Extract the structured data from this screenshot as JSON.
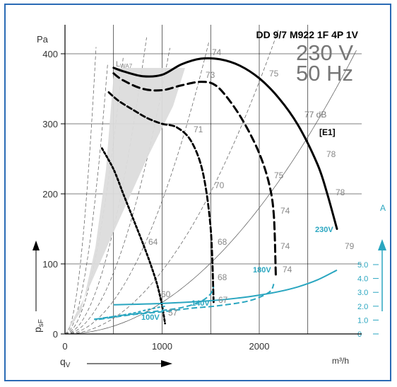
{
  "chart_data": {
    "type": "line",
    "title": "DD 9/7 M922 1F 4P 1V",
    "voltage": "230 V",
    "frequency": "50 Hz",
    "ylabel_unit": "Pa",
    "ylabel": "p",
    "ylabel_sub": "sF",
    "xlabel": "q",
    "xlabel_sub": "V",
    "xunit": "m³/h",
    "y2unit": "A",
    "lwa_label": "L",
    "lwa_sub": "WA7",
    "db_label": "77 dB",
    "e1_label": "[E1]",
    "xlim": [
      0,
      3000
    ],
    "ylim": [
      0,
      450
    ],
    "y2lim": [
      0,
      5.5
    ],
    "x_ticks": [
      0,
      1000,
      2000
    ],
    "y_ticks": [
      0,
      100,
      200,
      300,
      400
    ],
    "y2_ticks": [
      "0",
      "1.0",
      "2.0",
      "3.0",
      "4.0",
      "5.0"
    ],
    "y2_tick_values": [
      0,
      1,
      2,
      3,
      4,
      5
    ],
    "grid": true,
    "pressure_series": [
      {
        "name": "230V",
        "style": "solid",
        "x": [
          500,
          600,
          800,
          1000,
          1200,
          1400,
          1600,
          1800,
          2000,
          2200,
          2400,
          2600,
          2700,
          2800
        ],
        "y": [
          380,
          375,
          368,
          370,
          385,
          393,
          392,
          383,
          365,
          337,
          298,
          242,
          200,
          150
        ]
      },
      {
        "name": "180V",
        "style": "dash",
        "x": [
          500,
          600,
          800,
          1000,
          1200,
          1400,
          1550,
          1700,
          1850,
          2000,
          2100,
          2150,
          2170
        ],
        "y": [
          372,
          362,
          350,
          348,
          355,
          360,
          355,
          332,
          300,
          258,
          215,
          170,
          85
        ]
      },
      {
        "name": "140V",
        "style": "dash-mid",
        "x": [
          450,
          550,
          700,
          850,
          1000,
          1150,
          1300,
          1420,
          1500,
          1530
        ],
        "y": [
          345,
          333,
          320,
          308,
          300,
          295,
          275,
          230,
          150,
          45
        ]
      },
      {
        "name": "100V",
        "style": "dot",
        "x": [
          380,
          500,
          600,
          700,
          800,
          880,
          950,
          1000,
          1030
        ],
        "y": [
          265,
          235,
          200,
          165,
          130,
          100,
          70,
          40,
          15
        ]
      }
    ],
    "current_series": [
      {
        "name": "230V",
        "x": [
          500,
          1000,
          1500,
          1800,
          2000,
          2200,
          2400,
          2600,
          2800
        ],
        "y": [
          2.1,
          2.2,
          2.4,
          2.6,
          2.8,
          3.05,
          3.4,
          3.9,
          4.6
        ]
      },
      {
        "name": "180V",
        "x": [
          350,
          700,
          1000,
          1300,
          1600,
          1900,
          2100,
          2150
        ],
        "y": [
          1.05,
          1.4,
          1.6,
          1.85,
          2.05,
          2.4,
          3.0,
          3.6
        ]
      },
      {
        "name": "140V",
        "x": [
          300,
          600,
          900,
          1200,
          1400,
          1500,
          1530
        ],
        "y": [
          1.05,
          1.35,
          1.6,
          1.9,
          2.35,
          2.9,
          3.4
        ]
      },
      {
        "name": "100V",
        "x": [
          300,
          500,
          700,
          850,
          950,
          1030
        ],
        "y": [
          1.05,
          1.25,
          1.5,
          1.75,
          1.9,
          2.0
        ]
      }
    ],
    "current_labels": [
      "230V",
      "180V",
      "140V",
      "100V"
    ],
    "sound_labels": [
      "64",
      "60",
      "57",
      "70",
      "68",
      "68",
      "67",
      "71",
      "75",
      "74",
      "74",
      "74",
      "73",
      "74",
      "75",
      "78",
      "78",
      "79"
    ]
  }
}
